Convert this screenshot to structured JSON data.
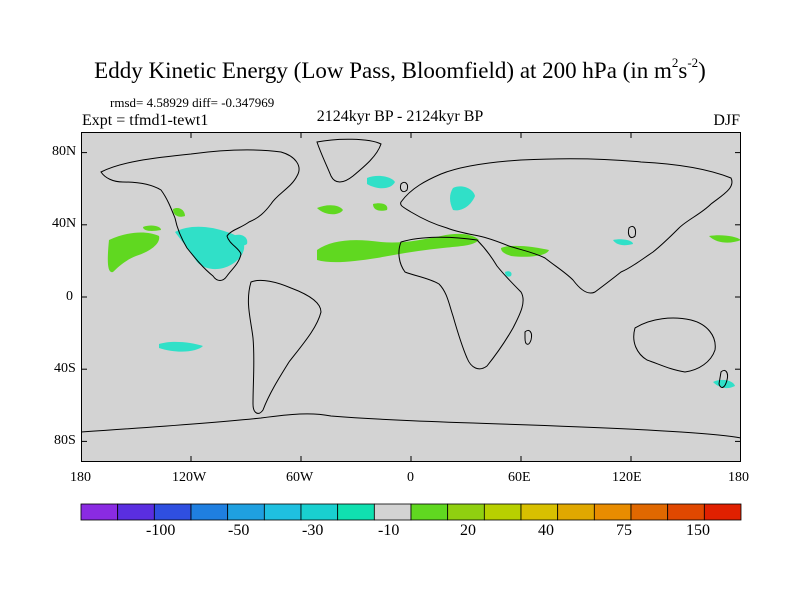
{
  "title": {
    "main": "Eddy Kinetic Energy (Low Pass, Bloomfield) at 200 hPa (in m",
    "sup1": "2",
    "mid": "s",
    "sup2": "-2",
    "close": ")"
  },
  "stats": {
    "rmsd_label": "rmsd= ",
    "rmsd": "4.58929",
    "diff_label": " diff= ",
    "diff": "-0.347969"
  },
  "experiment": "Expt = tfmd1-tewt1",
  "period": "2124kyr BP - 2124kyr BP",
  "season": "DJF",
  "axes": {
    "y_ticks": [
      "80N",
      "40N",
      "0",
      "40S",
      "80S"
    ],
    "x_ticks": [
      "180",
      "120W",
      "60W",
      "0",
      "60E",
      "120E",
      "180"
    ]
  },
  "colorbar": {
    "colors": [
      "#8a2be2",
      "#5a2ee0",
      "#2f4fe0",
      "#1f7fe0",
      "#1fa0e0",
      "#1fc0e0",
      "#19d0d0",
      "#10e0b0",
      "#d3d3d3",
      "#60d820",
      "#90d010",
      "#b8d000",
      "#d8c000",
      "#e0a800",
      "#e88c00",
      "#e06800",
      "#e04800",
      "#e02000"
    ],
    "labels": [
      "-100",
      "-50",
      "-30",
      "-10",
      "20",
      "40",
      "75",
      "150"
    ]
  },
  "colors": {
    "land_ocean_fill": "#d3d3d3",
    "positive_anomaly": "#60d820",
    "negative_anomaly": "#30e0c8"
  }
}
